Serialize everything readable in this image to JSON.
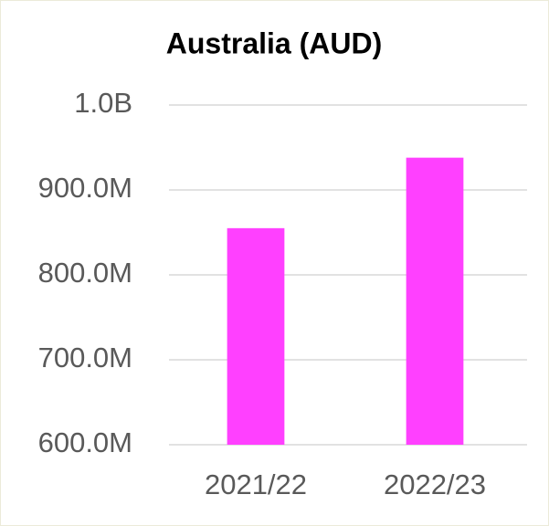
{
  "chart_data": {
    "type": "bar",
    "title": "Australia (AUD)",
    "categories": [
      "2021/22",
      "2022/23"
    ],
    "values": [
      855000000,
      938000000
    ],
    "color": "#ff40ff",
    "ylim": [
      600000000,
      1000000000
    ],
    "yticks": [
      {
        "value": 600000000,
        "label": "600.0M"
      },
      {
        "value": 700000000,
        "label": "700.0M"
      },
      {
        "value": 800000000,
        "label": "800.0M"
      },
      {
        "value": 900000000,
        "label": "900.0M"
      },
      {
        "value": 1000000000,
        "label": "1.0B"
      }
    ],
    "grid": true
  }
}
